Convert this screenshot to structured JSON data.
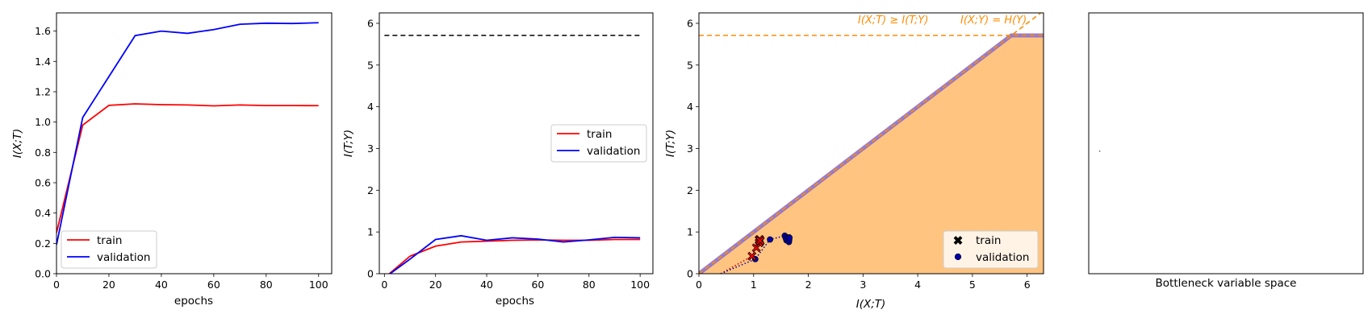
{
  "chart_data": [
    {
      "type": "line",
      "xlabel": "epochs",
      "ylabel": "I(X;T)",
      "xlim": [
        0,
        105
      ],
      "ylim": [
        0,
        1.72
      ],
      "xticks": [
        0,
        20,
        40,
        60,
        80,
        100
      ],
      "yticks": [
        0.0,
        0.2,
        0.4,
        0.6,
        0.8,
        1.0,
        1.2,
        1.4,
        1.6
      ],
      "yticklabels": [
        "0.0",
        "0.2",
        "0.4",
        "0.6",
        "0.8",
        "1.0",
        "1.2",
        "1.4",
        "1.6"
      ],
      "x": [
        0,
        10,
        20,
        30,
        40,
        50,
        60,
        70,
        80,
        90,
        100
      ],
      "series": [
        {
          "name": "train",
          "color": "#ff0000",
          "values": [
            0.27,
            0.98,
            1.11,
            1.12,
            1.115,
            1.113,
            1.107,
            1.113,
            1.109,
            1.109,
            1.108
          ]
        },
        {
          "name": "validation",
          "color": "#0000ff",
          "values": [
            0.19,
            1.03,
            1.3,
            1.57,
            1.6,
            1.585,
            1.61,
            1.645,
            1.652,
            1.65,
            1.655
          ]
        }
      ],
      "legend": "lower-left"
    },
    {
      "type": "line",
      "xlabel": "epochs",
      "ylabel": "I(T;Y)",
      "xlim": [
        -2,
        105
      ],
      "ylim": [
        0,
        6.25
      ],
      "xticks": [
        0,
        20,
        40,
        60,
        80,
        100
      ],
      "yticks": [
        0,
        1,
        2,
        3,
        4,
        5,
        6
      ],
      "reference_line": {
        "y": 5.71,
        "style": "dashed",
        "color": "#000000"
      },
      "x": [
        0,
        10,
        20,
        30,
        40,
        50,
        60,
        70,
        80,
        90,
        100
      ],
      "series": [
        {
          "name": "train",
          "color": "#ff0000",
          "values": [
            -0.1,
            0.42,
            0.66,
            0.76,
            0.78,
            0.8,
            0.81,
            0.8,
            0.8,
            0.82,
            0.82
          ]
        },
        {
          "name": "validation",
          "color": "#0000ff",
          "values": [
            -0.1,
            0.35,
            0.82,
            0.91,
            0.8,
            0.86,
            0.83,
            0.76,
            0.81,
            0.87,
            0.86
          ]
        }
      ],
      "legend": "center-right"
    },
    {
      "type": "scatter",
      "xlabel": "I(X;T)",
      "ylabel": "I(T;Y)",
      "xlim": [
        0,
        6.3
      ],
      "ylim": [
        0,
        6.25
      ],
      "xticks": [
        0,
        1,
        2,
        3,
        4,
        5,
        6
      ],
      "yticks": [
        0,
        1,
        2,
        3,
        4,
        5,
        6
      ],
      "HY": 5.71,
      "region_color": "#ffc480",
      "bound_color": "#8a6fd0",
      "ref_color": "#ff8c00",
      "annotations": [
        "I(X;T) ≥ I(T;Y)",
        "I(X;Y) = H(Y)"
      ],
      "series": [
        {
          "name": "train",
          "color": "#ff0000",
          "marker": "X",
          "points": [
            [
              0.97,
              0.42
            ],
            [
              1.05,
              0.62
            ],
            [
              1.1,
              0.74
            ],
            [
              1.12,
              0.78
            ],
            [
              1.11,
              0.8
            ],
            [
              1.1,
              0.81
            ],
            [
              1.11,
              0.8
            ],
            [
              1.11,
              0.82
            ],
            [
              1.11,
              0.82
            ],
            [
              1.12,
              0.79
            ]
          ]
        },
        {
          "name": "validation",
          "color": "#0000aa",
          "marker": "o",
          "points": [
            [
              1.03,
              0.35
            ],
            [
              1.3,
              0.82
            ],
            [
              1.57,
              0.91
            ],
            [
              1.6,
              0.8
            ],
            [
              1.585,
              0.86
            ],
            [
              1.61,
              0.83
            ],
            [
              1.645,
              0.76
            ],
            [
              1.65,
              0.81
            ],
            [
              1.65,
              0.87
            ],
            [
              1.655,
              0.86
            ]
          ]
        }
      ],
      "legend": "lower-right"
    },
    {
      "type": "scatter",
      "xlabel": "Bottleneck variable space",
      "ticks": "none",
      "xlim": [
        0,
        1
      ],
      "ylim": [
        0,
        1
      ],
      "points": [
        [
          0.04,
          0.47
        ]
      ]
    }
  ]
}
